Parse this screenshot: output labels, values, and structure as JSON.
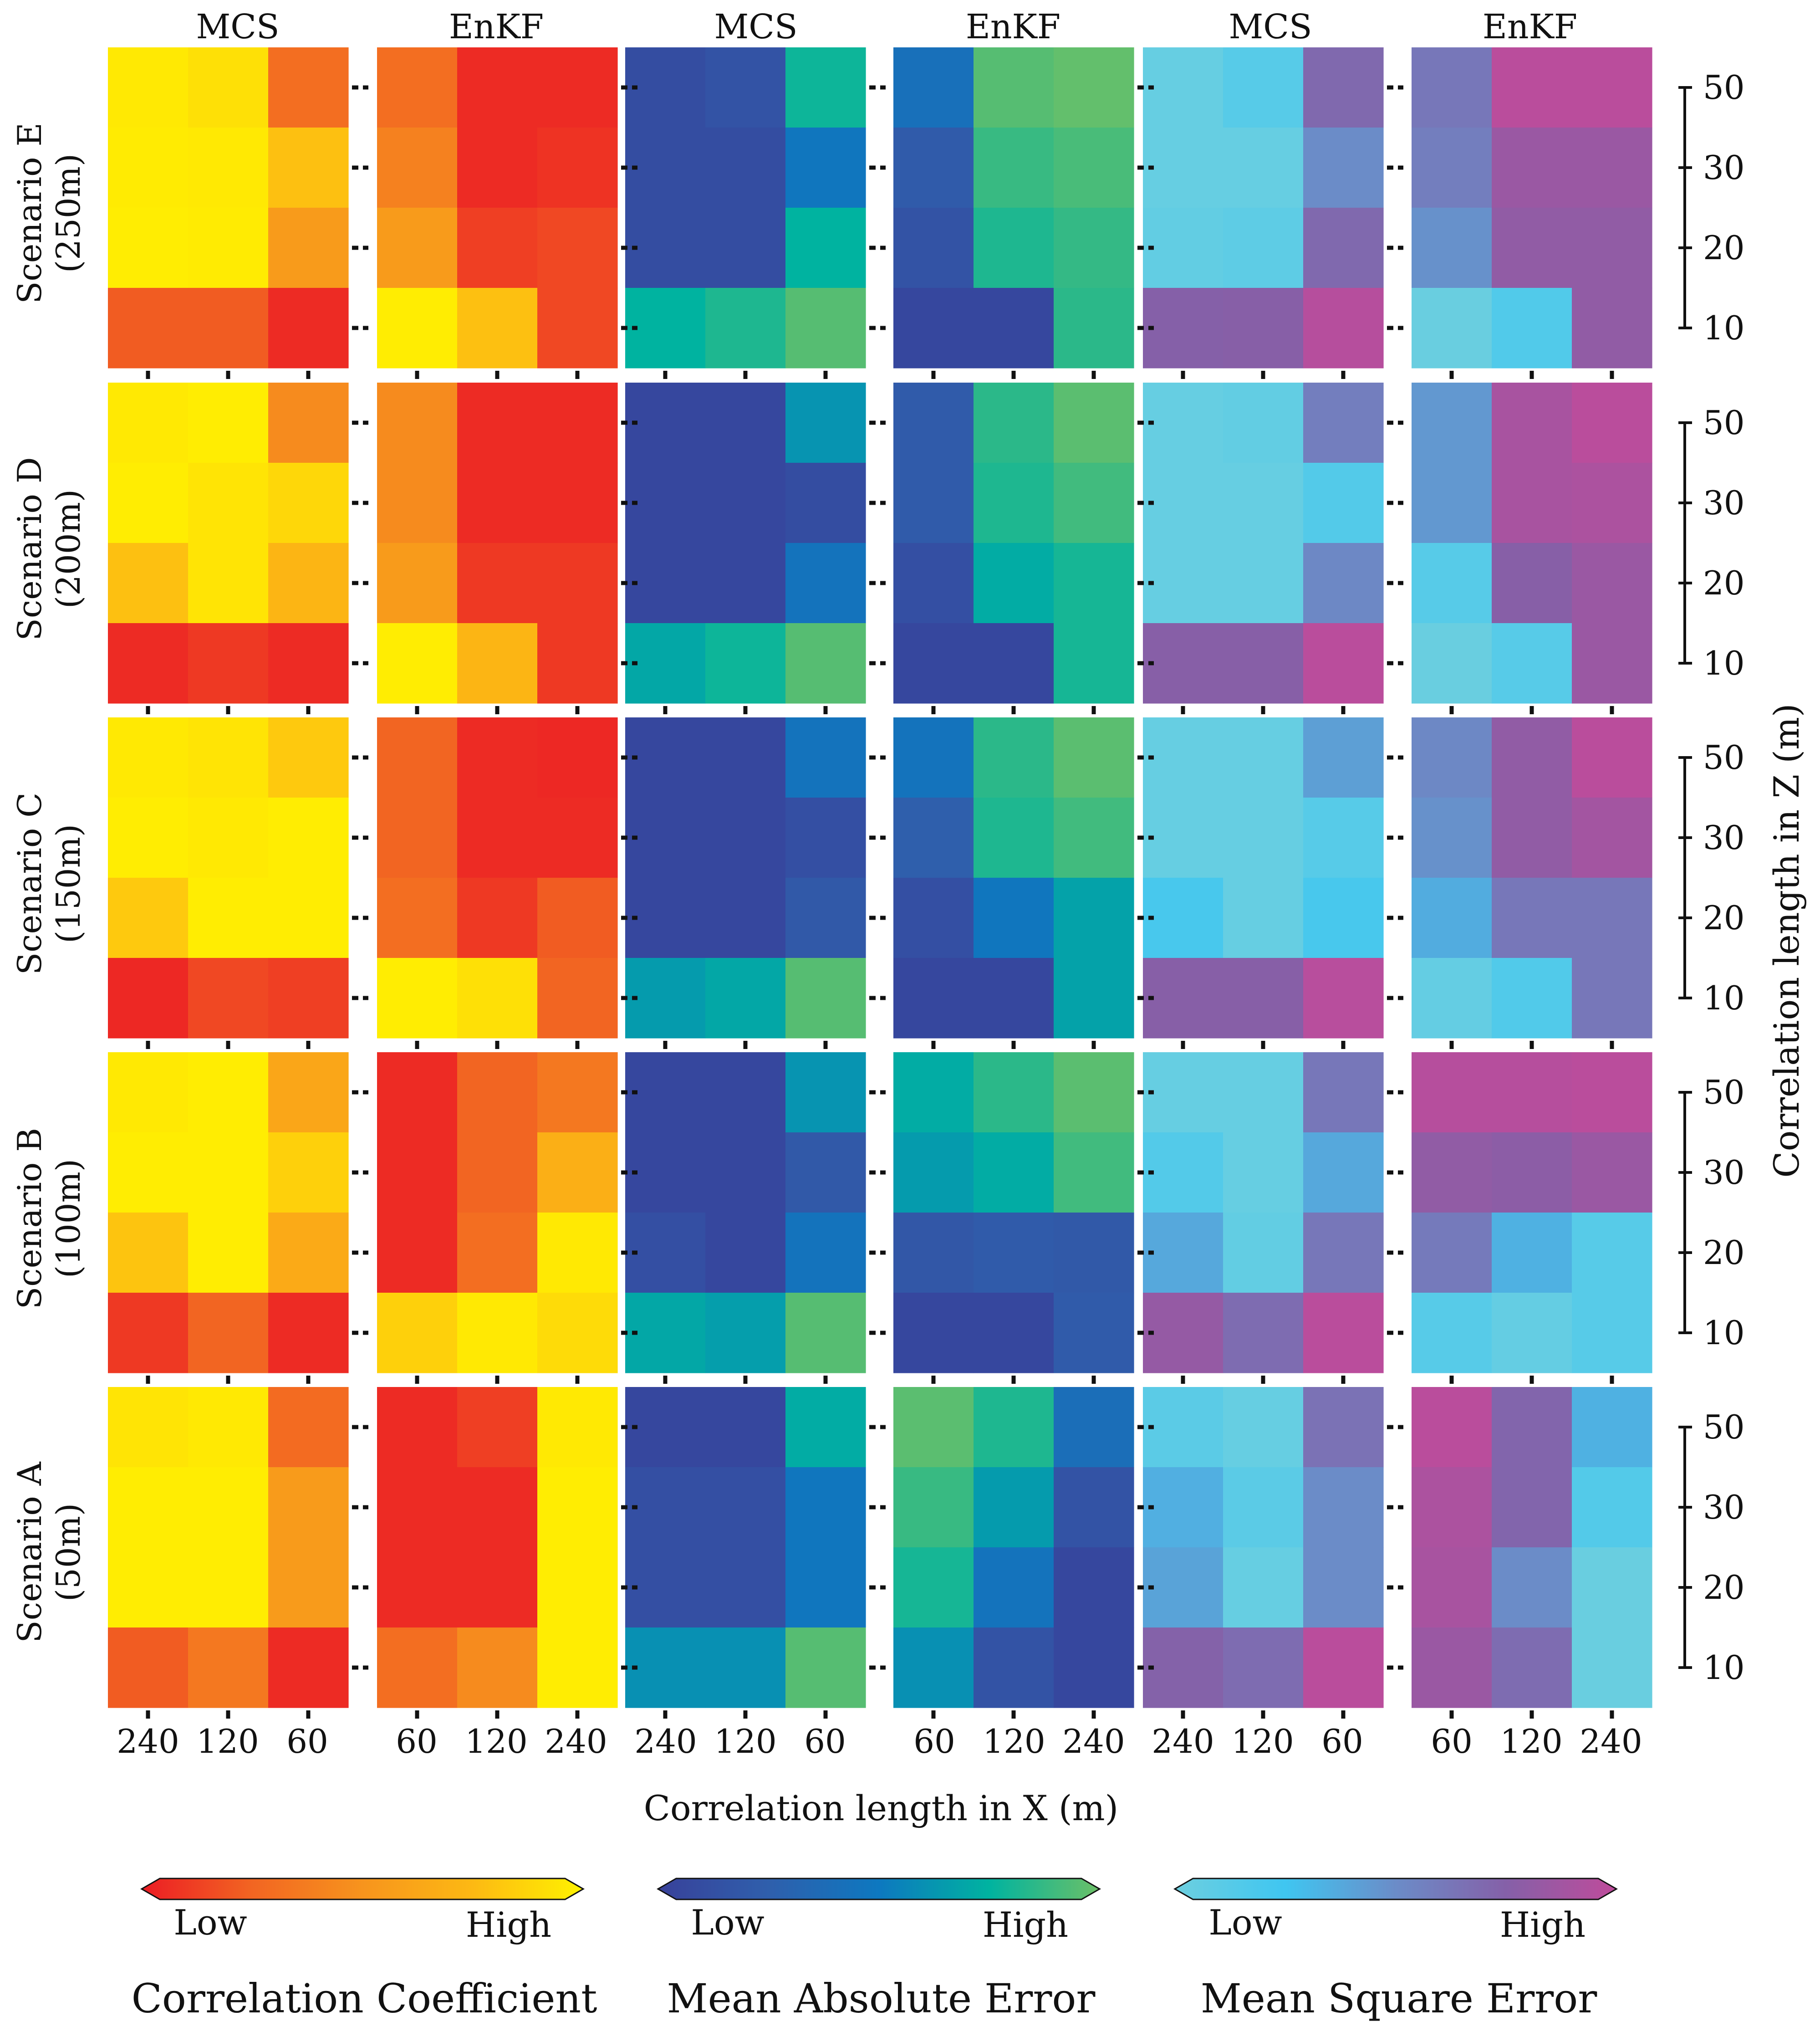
{
  "chart_data": {
    "type": "heatmap",
    "column_titles": [
      "MCS",
      "EnKF",
      "MCS",
      "EnKF",
      "MCS",
      "EnKF"
    ],
    "row_titles": [
      [
        "Scenario E",
        "(250m)"
      ],
      [
        "Scenario D",
        "(200m)"
      ],
      [
        "Scenario C",
        "(150m)"
      ],
      [
        "Scenario B",
        "(100m)"
      ],
      [
        "Scenario A",
        "(50m)"
      ]
    ],
    "x_tick_labels": [
      [
        "240",
        "120",
        "60"
      ],
      [
        "60",
        "120",
        "240"
      ],
      [
        "240",
        "120",
        "60"
      ],
      [
        "60",
        "120",
        "240"
      ],
      [
        "240",
        "120",
        "60"
      ],
      [
        "60",
        "120",
        "240"
      ]
    ],
    "y_tick_labels": [
      "50",
      "30",
      "20",
      "10"
    ],
    "xlabel": "Correlation length in X (m)",
    "ylabel": "Correlation length in Z (m)",
    "panel_metric": [
      0,
      0,
      1,
      1,
      2,
      2
    ],
    "colorscales": [
      {
        "name": "Correlation Coefficient",
        "low": "Low",
        "high": "High",
        "stops": [
          "#ec1c24",
          "#f26522",
          "#f7941d",
          "#fdb913",
          "#fff200"
        ]
      },
      {
        "name": "Mean Absolute Error",
        "low": "Low",
        "high": "High",
        "stops": [
          "#38419a",
          "#2f5fac",
          "#0d78c0",
          "#00b3a0",
          "#6cc067"
        ]
      },
      {
        "name": "Mean Square Error",
        "low": "Low",
        "high": "High",
        "stops": [
          "#6dcfdf",
          "#3fc6f1",
          "#6b8cc8",
          "#8560a8",
          "#bf4b9b"
        ]
      }
    ],
    "note": "Values are relative positions on each colour scale (0 = Low, 1 = High). Each panel: rows ordered Z = 50, 30, 20, 10 (top to bottom); columns follow the panel's x tick labels.",
    "panels": [
      [
        [
          [
            0.96,
            0.92,
            0.3
          ],
          [
            0.97,
            0.96,
            0.78
          ],
          [
            0.98,
            0.97,
            0.55
          ],
          [
            0.22,
            0.22,
            0.05
          ]
        ],
        [
          [
            0.3,
            0.05,
            0.05
          ],
          [
            0.4,
            0.05,
            0.08
          ],
          [
            0.55,
            0.12,
            0.15
          ],
          [
            0.98,
            0.78,
            0.15
          ]
        ],
        [
          [
            0.1,
            0.15,
            0.78
          ],
          [
            0.1,
            0.1,
            0.48
          ],
          [
            0.1,
            0.1,
            0.75
          ],
          [
            0.75,
            0.82,
            0.95
          ]
        ],
        [
          [
            0.42,
            0.95,
            0.98
          ],
          [
            0.22,
            0.88,
            0.92
          ],
          [
            0.15,
            0.82,
            0.87
          ],
          [
            0.05,
            0.05,
            0.85
          ]
        ],
        [
          [
            0.04,
            0.12,
            0.7
          ],
          [
            0.04,
            0.04,
            0.5
          ],
          [
            0.06,
            0.08,
            0.7
          ],
          [
            0.75,
            0.76,
            0.96
          ]
        ],
        [
          [
            0.62,
            0.98,
            0.98
          ],
          [
            0.58,
            0.84,
            0.84
          ],
          [
            0.48,
            0.8,
            0.8
          ],
          [
            0.02,
            0.15,
            0.8
          ]
        ]
      ],
      [
        [
          [
            0.96,
            0.98,
            0.45
          ],
          [
            0.98,
            0.94,
            0.88
          ],
          [
            0.78,
            0.94,
            0.72
          ],
          [
            0.05,
            0.1,
            0.05
          ]
        ],
        [
          [
            0.45,
            0.05,
            0.05
          ],
          [
            0.45,
            0.05,
            0.05
          ],
          [
            0.55,
            0.1,
            0.1
          ],
          [
            0.98,
            0.72,
            0.1
          ]
        ],
        [
          [
            0.05,
            0.05,
            0.62
          ],
          [
            0.05,
            0.05,
            0.1
          ],
          [
            0.05,
            0.05,
            0.45
          ],
          [
            0.7,
            0.78,
            0.95
          ]
        ],
        [
          [
            0.22,
            0.85,
            0.96
          ],
          [
            0.22,
            0.82,
            0.9
          ],
          [
            0.12,
            0.72,
            0.8
          ],
          [
            0.05,
            0.05,
            0.8
          ]
        ],
        [
          [
            0.04,
            0.06,
            0.58
          ],
          [
            0.04,
            0.04,
            0.14
          ],
          [
            0.04,
            0.04,
            0.52
          ],
          [
            0.76,
            0.76,
            0.98
          ]
        ],
        [
          [
            0.45,
            0.9,
            0.98
          ],
          [
            0.45,
            0.9,
            0.92
          ],
          [
            0.12,
            0.76,
            0.84
          ],
          [
            0.02,
            0.12,
            0.84
          ]
        ]
      ],
      [
        [
          [
            0.96,
            0.94,
            0.82
          ],
          [
            0.98,
            0.96,
            0.98
          ],
          [
            0.82,
            0.98,
            0.98
          ],
          [
            0.04,
            0.15,
            0.12
          ]
        ],
        [
          [
            0.25,
            0.05,
            0.04
          ],
          [
            0.25,
            0.05,
            0.05
          ],
          [
            0.3,
            0.1,
            0.22
          ],
          [
            0.98,
            0.92,
            0.25
          ]
        ],
        [
          [
            0.05,
            0.05,
            0.45
          ],
          [
            0.05,
            0.05,
            0.12
          ],
          [
            0.05,
            0.05,
            0.2
          ],
          [
            0.65,
            0.7,
            0.95
          ]
        ],
        [
          [
            0.45,
            0.85,
            0.96
          ],
          [
            0.25,
            0.82,
            0.9
          ],
          [
            0.12,
            0.48,
            0.68
          ],
          [
            0.05,
            0.05,
            0.68
          ]
        ],
        [
          [
            0.04,
            0.04,
            0.42
          ],
          [
            0.04,
            0.04,
            0.12
          ],
          [
            0.2,
            0.04,
            0.2
          ],
          [
            0.76,
            0.76,
            0.97
          ]
        ],
        [
          [
            0.52,
            0.8,
            0.98
          ],
          [
            0.48,
            0.8,
            0.88
          ],
          [
            0.36,
            0.62,
            0.62
          ],
          [
            0.05,
            0.15,
            0.62
          ]
        ]
      ],
      [
        [
          [
            0.96,
            0.98,
            0.62
          ],
          [
            0.98,
            0.98,
            0.85
          ],
          [
            0.8,
            0.98,
            0.65
          ],
          [
            0.1,
            0.25,
            0.05
          ]
        ],
        [
          [
            0.05,
            0.25,
            0.35
          ],
          [
            0.05,
            0.25,
            0.68
          ],
          [
            0.05,
            0.3,
            0.96
          ],
          [
            0.85,
            0.96,
            0.9
          ]
        ],
        [
          [
            0.05,
            0.05,
            0.62
          ],
          [
            0.05,
            0.05,
            0.2
          ],
          [
            0.12,
            0.05,
            0.45
          ],
          [
            0.7,
            0.66,
            0.95
          ]
        ],
        [
          [
            0.72,
            0.85,
            0.96
          ],
          [
            0.65,
            0.72,
            0.9
          ],
          [
            0.18,
            0.22,
            0.2
          ],
          [
            0.05,
            0.05,
            0.22
          ]
        ],
        [
          [
            0.04,
            0.04,
            0.62
          ],
          [
            0.14,
            0.04,
            0.38
          ],
          [
            0.38,
            0.06,
            0.62
          ],
          [
            0.82,
            0.68,
            0.98
          ]
        ],
        [
          [
            0.96,
            0.96,
            0.98
          ],
          [
            0.8,
            0.78,
            0.84
          ],
          [
            0.6,
            0.34,
            0.12
          ],
          [
            0.12,
            0.05,
            0.12
          ]
        ]
      ],
      [
        [
          [
            0.94,
            0.96,
            0.28
          ],
          [
            0.98,
            0.98,
            0.55
          ],
          [
            0.98,
            0.98,
            0.55
          ],
          [
            0.22,
            0.35,
            0.05
          ]
        ],
        [
          [
            0.05,
            0.12,
            0.96
          ],
          [
            0.05,
            0.05,
            0.98
          ],
          [
            0.05,
            0.05,
            0.98
          ],
          [
            0.3,
            0.45,
            0.98
          ]
        ],
        [
          [
            0.05,
            0.05,
            0.72
          ],
          [
            0.12,
            0.12,
            0.48
          ],
          [
            0.12,
            0.12,
            0.48
          ],
          [
            0.6,
            0.6,
            0.95
          ]
        ],
        [
          [
            0.96,
            0.82,
            0.4
          ],
          [
            0.88,
            0.65,
            0.15
          ],
          [
            0.8,
            0.45,
            0.05
          ],
          [
            0.6,
            0.15,
            0.05
          ]
        ],
        [
          [
            0.1,
            0.04,
            0.65
          ],
          [
            0.35,
            0.1,
            0.5
          ],
          [
            0.4,
            0.04,
            0.5
          ],
          [
            0.74,
            0.68,
            0.98
          ]
        ],
        [
          [
            0.98,
            0.72,
            0.34
          ],
          [
            0.92,
            0.72,
            0.14
          ],
          [
            0.9,
            0.5,
            0.02
          ],
          [
            0.84,
            0.68,
            0.02
          ]
        ]
      ]
    ]
  }
}
